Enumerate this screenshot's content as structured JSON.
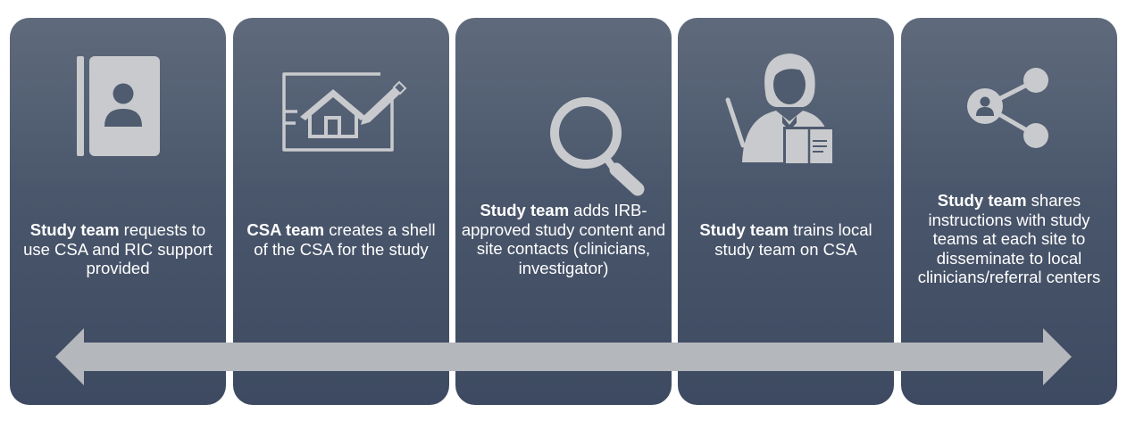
{
  "steps": [
    {
      "icon": "contact-book-icon",
      "bold": "Study team",
      "text": " requests to use CSA and RIC support provided"
    },
    {
      "icon": "house-blueprint-icon",
      "bold": "CSA team",
      "text": " creates a shell of the CSA for the study"
    },
    {
      "icon": "magnifying-glass-icon",
      "bold": "Study team",
      "text": " adds IRB-approved study content and site contacts (clinicians, investigator)"
    },
    {
      "icon": "teacher-icon",
      "bold": "Study team",
      "text": " trains local study team on CSA"
    },
    {
      "icon": "share-icon",
      "bold": "Study team",
      "text": " shares instructions with study teams at each site to disseminate to local clinicians/referral centers"
    }
  ],
  "colors": {
    "panel_top": "#5f6b7c",
    "panel_bottom": "#3d4a61",
    "icon": "#c8cacd",
    "arrow": "#b4b7bc",
    "text": "#ffffff"
  }
}
